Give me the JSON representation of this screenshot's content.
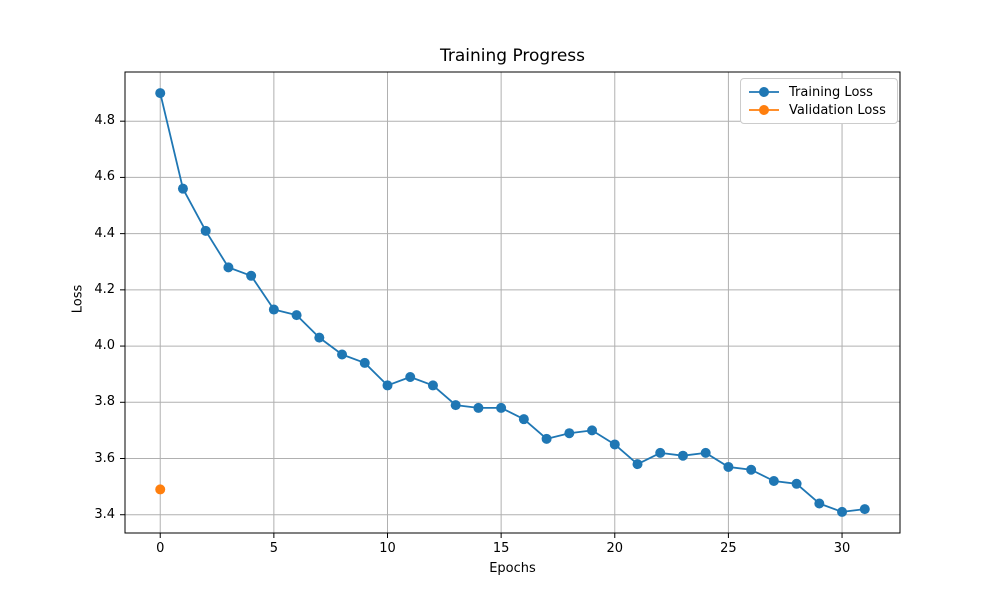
{
  "figure": {
    "title": "Training Progress",
    "xlabel": "Epochs",
    "ylabel": "Loss"
  },
  "colors": {
    "training_loss": "#1f77b4",
    "validation_loss": "#ff7f0e",
    "grid": "#b0b0b0",
    "spine": "#000000",
    "legend_border": "#cccccc",
    "background": "#ffffff"
  },
  "chart_data": {
    "type": "line",
    "title": "Training Progress",
    "xlabel": "Epochs",
    "ylabel": "Loss",
    "grid": true,
    "legend_position": "upper right",
    "xlim": [
      -1.55,
      32.55
    ],
    "ylim": [
      3.335,
      4.975
    ],
    "x_ticks": {
      "values": [
        0,
        5,
        10,
        15,
        20,
        25,
        30
      ],
      "labels": [
        "0",
        "5",
        "10",
        "15",
        "20",
        "25",
        "30"
      ]
    },
    "y_ticks": {
      "values": [
        3.4,
        3.6,
        3.8,
        4.0,
        4.2,
        4.4,
        4.6,
        4.8
      ],
      "labels": [
        "3.4",
        "3.6",
        "3.8",
        "4.0",
        "4.2",
        "4.4",
        "4.6",
        "4.8"
      ]
    },
    "series": [
      {
        "name": "Training Loss",
        "color": "#1f77b4",
        "marker": "circle",
        "x": [
          0,
          1,
          2,
          3,
          4,
          5,
          6,
          7,
          8,
          9,
          10,
          11,
          12,
          13,
          14,
          15,
          16,
          17,
          18,
          19,
          20,
          21,
          22,
          23,
          24,
          25,
          26,
          27,
          28,
          29,
          30,
          31
        ],
        "y": [
          4.9,
          4.56,
          4.41,
          4.28,
          4.25,
          4.13,
          4.11,
          4.03,
          3.97,
          3.94,
          3.86,
          3.89,
          3.86,
          3.79,
          3.78,
          3.78,
          3.74,
          3.67,
          3.69,
          3.7,
          3.65,
          3.58,
          3.62,
          3.61,
          3.62,
          3.57,
          3.56,
          3.52,
          3.51,
          3.44,
          3.41,
          3.42
        ]
      },
      {
        "name": "Validation Loss",
        "color": "#ff7f0e",
        "marker": "circle",
        "x": [
          0
        ],
        "y": [
          3.49
        ]
      }
    ]
  }
}
